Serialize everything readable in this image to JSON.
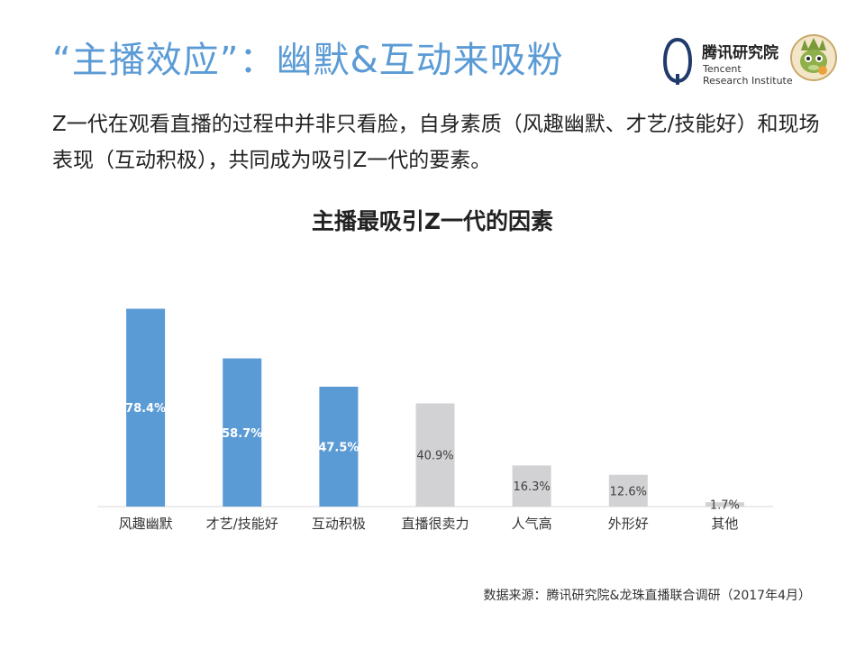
{
  "header": {
    "title": "“主播效应”：幽默&互动来吸粉",
    "logo_cn": "腾讯研究院",
    "logo_en_line1": "Tencent",
    "logo_en_line2": "Research Institute"
  },
  "intro": "Z一代在观看直播的过程中并非只看脸，自身素质（风趣幽默、才艺/技能好）和现场表现（互动积极），共同成为吸引Z一代的要素。",
  "colors": {
    "highlight": "#5b9bd5",
    "muted": "#d2d2d4",
    "title_blue": "#5b9bd5"
  },
  "chart_data": {
    "type": "bar",
    "title": "主播最吸引Z一代的因素",
    "categories": [
      "风趣幽默",
      "才艺/技能好",
      "互动积极",
      "直播很卖力",
      "人气高",
      "外形好",
      "其他"
    ],
    "values": [
      78.4,
      58.7,
      47.5,
      40.9,
      16.3,
      12.6,
      1.7
    ],
    "value_labels": [
      "78.4%",
      "58.7%",
      "47.5%",
      "40.9%",
      "16.3%",
      "12.6%",
      "1.7%"
    ],
    "highlight": [
      true,
      true,
      true,
      false,
      false,
      false,
      false
    ],
    "ylim": [
      0,
      90
    ],
    "grid": false,
    "legend": "none"
  },
  "source": "数据来源：腾讯研究院&龙珠直播联合调研（2017年4月）"
}
